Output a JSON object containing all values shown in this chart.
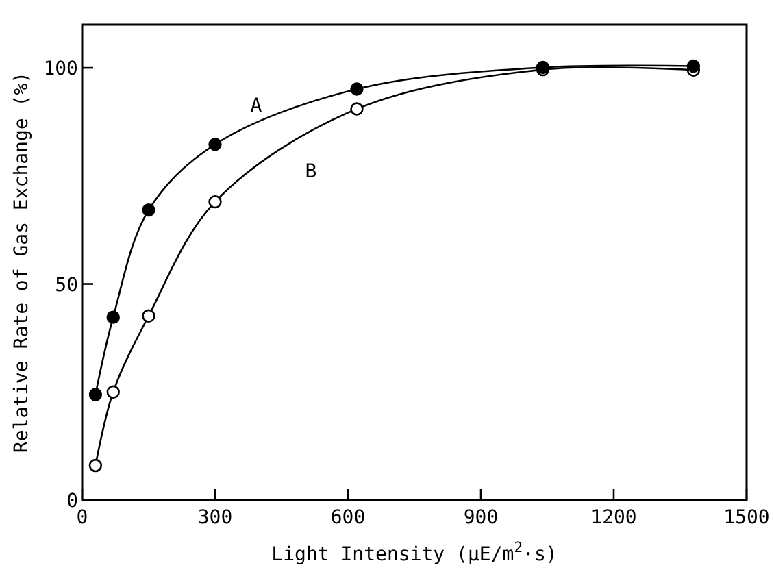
{
  "chart_data": {
    "type": "line",
    "xlabel": "Light Intensity (μE/m$^{2}$·s)",
    "ylabel": "Relative Rate of Gas Exchange (%)",
    "xlim": [
      0,
      1500
    ],
    "ylim": [
      0,
      110
    ],
    "xticks": [
      0,
      300,
      600,
      900,
      1200,
      1500
    ],
    "yticks": [
      0,
      50,
      100
    ],
    "grid": false,
    "line_style": "solid",
    "series": [
      {
        "name": "A",
        "color": "#000000",
        "marker": "circle",
        "x": [
          30,
          70,
          150,
          300,
          620,
          1040,
          1380
        ],
        "values": [
          24.4,
          42.3,
          67.1,
          82.3,
          95.1,
          100.1,
          100.4
        ]
      },
      {
        "name": "B",
        "color": "#000000",
        "marker": "circle",
        "x": [
          30,
          70,
          150,
          300,
          620,
          1040,
          1380
        ],
        "values": [
          8,
          25,
          42.6,
          69,
          90.5,
          99.6,
          99.5
        ]
      }
    ]
  }
}
